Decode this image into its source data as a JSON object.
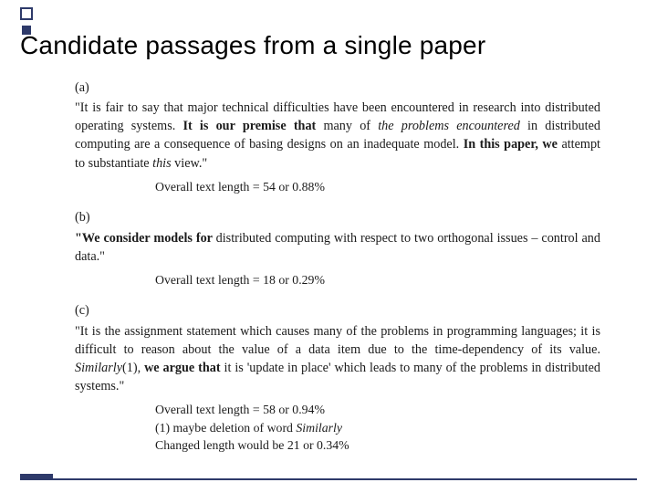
{
  "theme": {
    "accent": "#2e3a6a",
    "background": "#ffffff",
    "body_text": "#1b1b1b",
    "title_font": "Arial",
    "body_font": "Times New Roman",
    "title_fontsize_pt": 21,
    "body_fontsize_pt": 11
  },
  "title": "Candidate passages from a single paper",
  "passages": {
    "a": {
      "label": "(a)",
      "pre": "\"It is fair to say that major technical difficulties have been encountered in research into distributed operating systems. ",
      "bold1": "It is our premise that ",
      "mid1": "many of ",
      "ital1": "the problems encountered ",
      "mid2": "in distributed computing are a consequence of basing designs on an inadequate model. ",
      "bold2": "In this paper, we ",
      "mid3": "attempt to substantiate ",
      "ital2": "this ",
      "post": "view.\"",
      "caption": "Overall text length = 54 or 0.88%"
    },
    "b": {
      "label": "(b)",
      "bold1": "\"We consider models for ",
      "post": "distributed computing with respect to two orthogonal issues – control and data.\"",
      "caption": "Overall text length = 18 or 0.29%"
    },
    "c": {
      "label": "(c)",
      "pre": "\"It is the assignment statement which causes many of the problems in programming languages; it is difficult to reason about the value of a data item due to the time-dependency of its value. ",
      "ital1": "Similarly",
      "mid1": "(1), ",
      "bold1": "we argue that ",
      "mid2": "it is 'update in place' which leads to many of the problems in distributed systems.\"",
      "caption1": "Overall text length = 58 or 0.94%",
      "caption2_pre": "(1) maybe deletion of word ",
      "caption2_ital": "Similarly",
      "caption3": "Changed length would be 21 or 0.34%"
    }
  }
}
